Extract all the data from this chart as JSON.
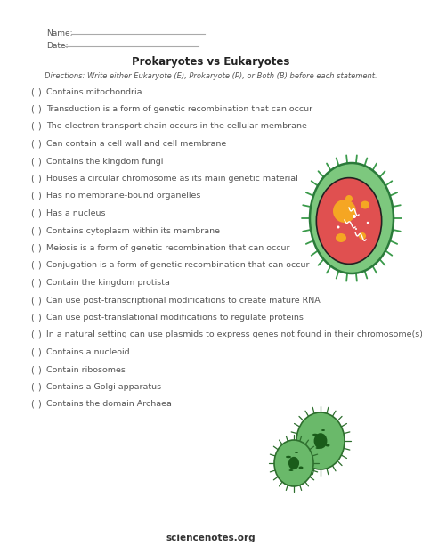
{
  "title": "Prokaryotes vs Eukaryotes",
  "directions": "Directions: Write either Eukaryote (E), Prokaryote (P), or Both (B) before each statement.",
  "name_label": "Name:",
  "date_label": "Date:",
  "footer": "sciencenotes.org",
  "items": [
    "Contains mitochondria",
    "Transduction is a form of genetic recombination that can occur",
    "The electron transport chain occurs in the cellular membrane",
    "Can contain a cell wall and cell membrane",
    "Contains the kingdom fungi",
    "Houses a circular chromosome as its main genetic material",
    "Has no membrane-bound organelles",
    "Has a nucleus",
    "Contains cytoplasm within its membrane",
    "Meiosis is a form of genetic recombination that can occur",
    "Conjugation is a form of genetic recombination that can occur",
    "Contain the kingdom protista",
    "Can use post-transcriptional modifications to create mature RNA",
    "Can use post-translational modifications to regulate proteins",
    "In a natural setting can use plasmids to express genes not found in their chromosome(s)",
    "Contains a nucleoid",
    "Contain ribosomes",
    "Contains a Golgi apparatus",
    "Contains the domain Archaea"
  ],
  "bg_color": "#ffffff",
  "text_color": "#555555",
  "title_color": "#222222",
  "directions_color": "#555555",
  "cell1_outer": "#7dc87e",
  "cell1_inner": "#e05050",
  "cell1_organelle": "#f5a623",
  "cell2_color": "#6ab96a",
  "cell2_nucleus": "#1a5c1a",
  "spike_color1": "#3a9a4a",
  "spike_color2": "#2d6e2d"
}
